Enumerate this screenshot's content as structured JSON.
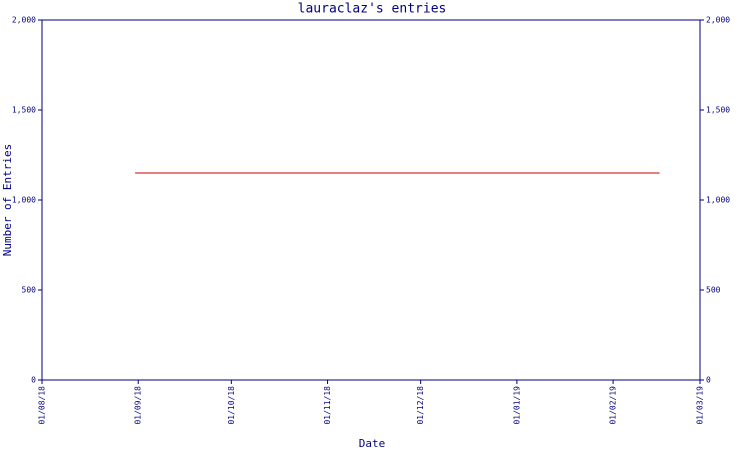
{
  "chart_data": {
    "type": "line",
    "title": "lauraclaz's entries",
    "x_label": "Date",
    "y_label": "Number of Entries",
    "x": [
      "2018-08-31",
      "2019-02-16"
    ],
    "values": [
      1150,
      1150
    ],
    "color": "#cc0000",
    "xlim": [
      "2018-08-01",
      "2019-03-01"
    ],
    "xticks": [
      {
        "value": "2018-08-01",
        "label": "01/08/18"
      },
      {
        "value": "2018-09-01",
        "label": "01/09/18"
      },
      {
        "value": "2018-10-01",
        "label": "01/10/18"
      },
      {
        "value": "2018-11-01",
        "label": "01/11/18"
      },
      {
        "value": "2018-12-01",
        "label": "01/12/18"
      },
      {
        "value": "2019-01-01",
        "label": "01/01/19"
      },
      {
        "value": "2019-02-01",
        "label": "01/02/19"
      },
      {
        "value": "2019-03-01",
        "label": "01/03/19"
      }
    ],
    "ylim": [
      0,
      2000
    ],
    "yticks": [
      0,
      500,
      {
        "value": 1000,
        "label": "1,000"
      },
      {
        "value": 1500,
        "label": "1,500"
      },
      {
        "value": 2000,
        "label": "2,000"
      }
    ],
    "y2lim": [
      0,
      2000
    ],
    "y2ticks": [
      0,
      500,
      {
        "value": 1000,
        "label": "1,000"
      },
      {
        "value": 1500,
        "label": "1,500"
      },
      {
        "value": 2000,
        "label": "2,000"
      }
    ],
    "axis_color": "#000080"
  }
}
